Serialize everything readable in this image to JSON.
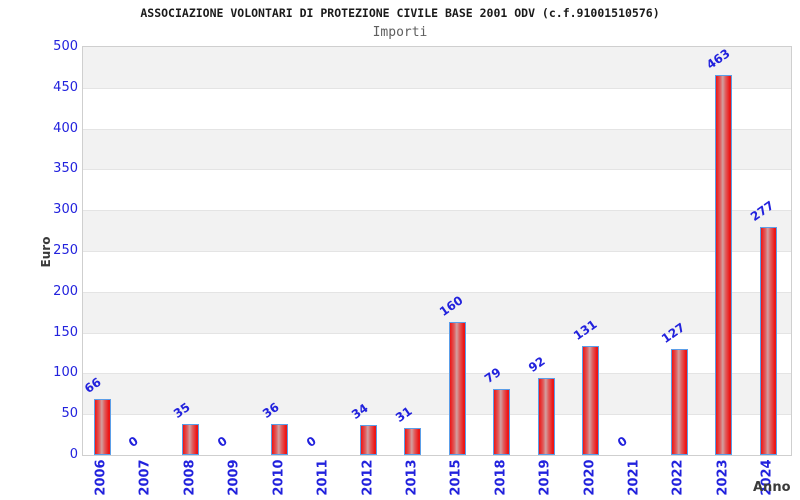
{
  "header": {
    "title": "ASSOCIAZIONE VOLONTARI DI PROTEZIONE CIVILE BASE 2001 ODV (c.f.91001510576)",
    "subtitle": "Importi"
  },
  "chart_data": {
    "type": "bar",
    "title": "ASSOCIAZIONE VOLONTARI DI PROTEZIONE CIVILE BASE 2001 ODV (c.f.91001510576)",
    "subtitle": "Importi",
    "xlabel": "Anno",
    "ylabel": "Euro",
    "categories": [
      "2006",
      "2007",
      "2008",
      "2009",
      "2010",
      "2011",
      "2012",
      "2013",
      "2015",
      "2018",
      "2019",
      "2020",
      "2021",
      "2022",
      "2023",
      "2024"
    ],
    "values": [
      66,
      0,
      35,
      0,
      36,
      0,
      34,
      31,
      160,
      79,
      92,
      131,
      0,
      127,
      463,
      277
    ],
    "ylim": [
      0,
      500
    ],
    "yticks": [
      0,
      50,
      100,
      150,
      200,
      250,
      300,
      350,
      400,
      450,
      500
    ],
    "grid": "alternating-horizontal-bands",
    "legend": "none",
    "colors": {
      "bar_fill_edge": "#ed1515",
      "bar_fill_mid": "#d2a0a0",
      "bar_border": "#5b9ee8",
      "label_blue": "#2222dd",
      "band_gray": "#f2f2f2",
      "plot_border": "#cfcfcf",
      "title_color": "#1a1a1a",
      "subtitle_color": "#5f5f5f",
      "axis_title_color": "#3a3a3a"
    }
  }
}
